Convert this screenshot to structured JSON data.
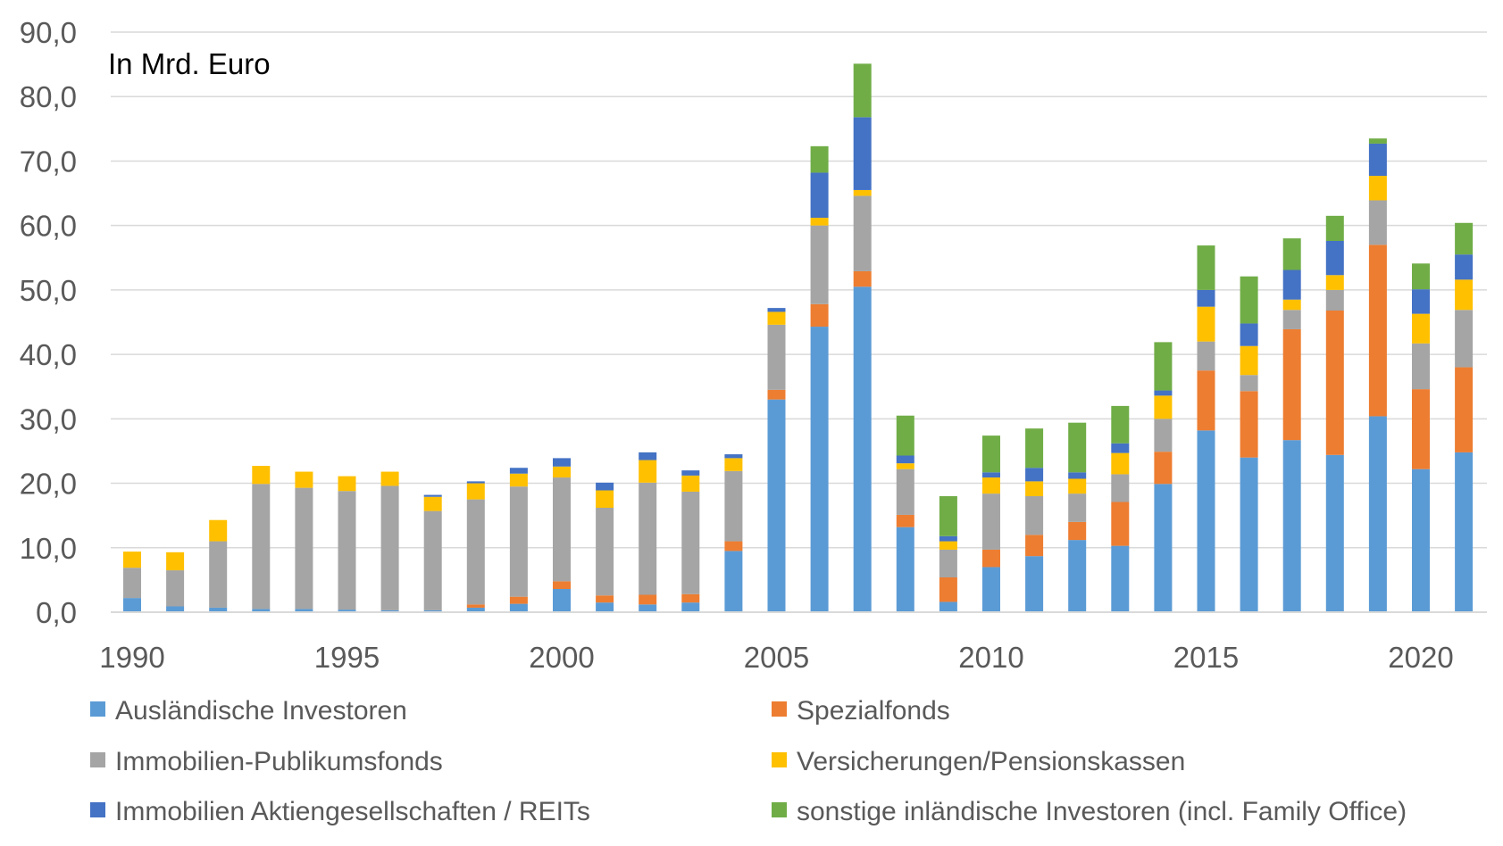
{
  "chart_data": {
    "type": "bar",
    "stacked": true,
    "unit_label": "In Mrd. Euro",
    "x": [
      1990,
      1991,
      1992,
      1993,
      1994,
      1995,
      1996,
      1997,
      1998,
      1999,
      2000,
      2001,
      2002,
      2003,
      2004,
      2005,
      2006,
      2007,
      2008,
      2009,
      2010,
      2011,
      2012,
      2013,
      2014,
      2015,
      2016,
      2017,
      2018,
      2019,
      2020,
      2021
    ],
    "xticks": [
      "1990",
      "1995",
      "2000",
      "2005",
      "2010",
      "2015",
      "2020"
    ],
    "xtick_years": [
      1990,
      1995,
      2000,
      2005,
      2010,
      2015,
      2020
    ],
    "yticks": [
      "0,0",
      "10,0",
      "20,0",
      "30,0",
      "40,0",
      "50,0",
      "60,0",
      "70,0",
      "80,0",
      "90,0"
    ],
    "ylim": [
      0,
      90
    ],
    "grid": "horizontal",
    "legend_position": "bottom",
    "series": [
      {
        "name": "Ausländische Investoren",
        "color": "#5B9BD5",
        "values": [
          2.2,
          0.9,
          0.7,
          0.5,
          0.5,
          0.4,
          0.3,
          0.3,
          0.7,
          1.3,
          3.6,
          1.5,
          1.2,
          1.5,
          9.5,
          33.0,
          44.3,
          50.5,
          13.2,
          1.6,
          7.0,
          8.7,
          11.2,
          10.3,
          19.9,
          28.2,
          24.0,
          26.7,
          24.4,
          30.4,
          22.2,
          24.8
        ]
      },
      {
        "name": "Spezialfonds",
        "color": "#ED7D31",
        "values": [
          0,
          0,
          0,
          0,
          0,
          0,
          0,
          0,
          0.5,
          1.1,
          1.2,
          1.1,
          1.5,
          1.3,
          1.5,
          1.5,
          3.5,
          2.4,
          1.9,
          3.8,
          2.7,
          3.3,
          2.8,
          6.8,
          5.0,
          9.3,
          10.3,
          17.2,
          22.4,
          26.6,
          12.4,
          13.2
        ]
      },
      {
        "name": "Immobilien-Publikumsfonds",
        "color": "#A5A5A5",
        "values": [
          4.7,
          5.6,
          10.3,
          19.4,
          18.8,
          18.4,
          19.3,
          15.4,
          16.3,
          17.1,
          16.1,
          13.6,
          17.4,
          15.9,
          10.9,
          10.1,
          12.2,
          11.7,
          7.1,
          4.3,
          8.7,
          6.0,
          4.4,
          4.3,
          5.1,
          4.5,
          2.5,
          3.0,
          3.2,
          6.9,
          7.1,
          8.9
        ]
      },
      {
        "name": "Versicherungen/Pensionskassen",
        "color": "#FFC000",
        "values": [
          2.5,
          2.8,
          3.3,
          2.8,
          2.5,
          2.3,
          2.2,
          2.2,
          2.5,
          2.0,
          1.7,
          2.7,
          3.5,
          2.5,
          2.0,
          2.0,
          1.2,
          0.9,
          0.9,
          1.3,
          2.5,
          2.3,
          2.3,
          3.3,
          3.6,
          5.4,
          4.5,
          1.6,
          2.3,
          3.8,
          4.6,
          4.7
        ]
      },
      {
        "name": "Immobilien Aktiengesellschaften / REITs",
        "color": "#4472C4",
        "values": [
          0,
          0,
          0,
          0,
          0,
          0,
          0,
          0.3,
          0.3,
          0.9,
          1.3,
          1.2,
          1.2,
          0.8,
          0.6,
          0.6,
          7.0,
          11.3,
          1.2,
          0.8,
          0.8,
          2.1,
          1.0,
          1.5,
          0.8,
          2.6,
          3.5,
          4.6,
          5.3,
          5.0,
          3.8,
          3.9
        ]
      },
      {
        "name": "sonstige inländische Investoren (incl. Family Office)",
        "color": "#70AD47",
        "values": [
          0,
          0,
          0,
          0,
          0,
          0,
          0,
          0,
          0,
          0,
          0,
          0,
          0,
          0,
          0,
          0,
          4.1,
          8.3,
          6.2,
          6.2,
          5.7,
          6.1,
          7.7,
          5.8,
          7.5,
          6.9,
          7.3,
          4.9,
          3.9,
          0.8,
          4.0,
          4.9
        ]
      }
    ]
  }
}
